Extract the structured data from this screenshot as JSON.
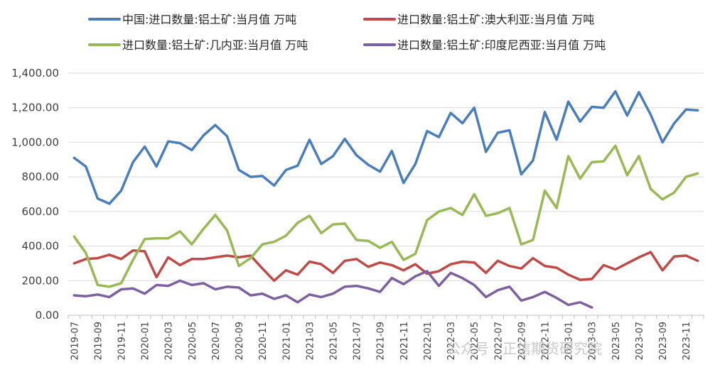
{
  "chart_data": {
    "type": "line",
    "title": "",
    "xlabel": "",
    "ylabel": "",
    "ylim": [
      0,
      1400
    ],
    "yticks": [
      0,
      200,
      400,
      600,
      800,
      1000,
      1200,
      1400
    ],
    "ytick_labels": [
      "0.00",
      "200.00",
      "400.00",
      "600.00",
      "800.00",
      "1,000.00",
      "1,200.00",
      "1,400.00"
    ],
    "x": [
      "2019-07",
      "2019-08",
      "2019-09",
      "2019-10",
      "2019-11",
      "2019-12",
      "2020-01",
      "2020-02",
      "2020-03",
      "2020-04",
      "2020-05",
      "2020-06",
      "2020-07",
      "2020-08",
      "2020-09",
      "2020-10",
      "2020-11",
      "2020-12",
      "2021-01",
      "2021-02",
      "2021-03",
      "2021-04",
      "2021-05",
      "2021-06",
      "2021-07",
      "2021-08",
      "2021-09",
      "2021-10",
      "2021-11",
      "2021-12",
      "2022-01",
      "2022-02",
      "2022-03",
      "2022-04",
      "2022-05",
      "2022-06",
      "2022-07",
      "2022-08",
      "2022-09",
      "2022-10",
      "2022-11",
      "2022-12",
      "2023-01",
      "2023-02",
      "2023-03",
      "2023-04",
      "2023-05",
      "2023-06",
      "2023-07",
      "2023-08",
      "2023-09",
      "2023-10",
      "2023-11",
      "2023-12"
    ],
    "xtick_labels": [
      "2019-07",
      "2019-09",
      "2019-11",
      "2020-01",
      "2020-03",
      "2020-05",
      "2020-07",
      "2020-09",
      "2020-11",
      "2021-01",
      "2021-03",
      "2021-05",
      "2021-07",
      "2021-09",
      "2021-11",
      "2022-01",
      "2022-03",
      "2022-05",
      "2022-07",
      "2022-09",
      "2022-11",
      "2023-01",
      "2023-03",
      "2023-05",
      "2023-07",
      "2023-09",
      "2023-11"
    ],
    "grid": "horizontal",
    "legend_position": "top",
    "series": [
      {
        "name": "中国:进口数量:铝土矿:当月值 万吨",
        "color": "#4a7ebb",
        "values": [
          910,
          860,
          675,
          645,
          720,
          885,
          975,
          860,
          1005,
          995,
          955,
          1040,
          1100,
          1035,
          840,
          800,
          805,
          750,
          840,
          865,
          1015,
          875,
          920,
          1020,
          925,
          870,
          830,
          950,
          765,
          875,
          1065,
          1030,
          1170,
          1110,
          1200,
          945,
          1055,
          1070,
          815,
          895,
          1175,
          1015,
          1235,
          1120,
          1205,
          1200,
          1295,
          1155,
          1290,
          1160,
          1000,
          1110,
          1190,
          1185
        ]
      },
      {
        "name": "进口数量:铝土矿:澳大利亚:当月值 万吨",
        "color": "#be4b48",
        "values": [
          300,
          325,
          330,
          350,
          325,
          375,
          370,
          220,
          335,
          290,
          325,
          325,
          335,
          345,
          335,
          345,
          270,
          200,
          260,
          235,
          310,
          295,
          245,
          315,
          325,
          280,
          305,
          290,
          260,
          295,
          240,
          255,
          295,
          310,
          305,
          245,
          315,
          285,
          270,
          330,
          285,
          275,
          235,
          205,
          210,
          290,
          265,
          300,
          335,
          365,
          260,
          340,
          345,
          315
        ]
      },
      {
        "name": "进口数量:铝土矿:几内亚:当月值 万吨",
        "color": "#98b954",
        "values": [
          455,
          360,
          175,
          165,
          185,
          320,
          440,
          445,
          445,
          485,
          410,
          500,
          580,
          490,
          285,
          330,
          410,
          425,
          460,
          535,
          575,
          475,
          525,
          530,
          435,
          430,
          390,
          425,
          320,
          355,
          550,
          600,
          620,
          580,
          700,
          575,
          590,
          620,
          410,
          435,
          720,
          620,
          920,
          790,
          885,
          890,
          980,
          810,
          920,
          730,
          670,
          710,
          800,
          820
        ]
      },
      {
        "name": "进口数量:铝土矿:印度尼西亚:当月值 万吨",
        "color": "#7d60a0",
        "values": [
          115,
          110,
          120,
          105,
          150,
          155,
          125,
          175,
          170,
          200,
          175,
          185,
          150,
          165,
          160,
          115,
          125,
          95,
          115,
          75,
          120,
          105,
          125,
          165,
          170,
          155,
          135,
          215,
          180,
          225,
          255,
          170,
          245,
          215,
          175,
          105,
          145,
          165,
          85,
          105,
          135,
          100,
          60,
          75,
          45,
          null,
          null,
          null,
          null,
          null,
          null,
          null,
          null,
          null
        ]
      }
    ]
  },
  "watermark": "公众号 · 正信期货研究院"
}
